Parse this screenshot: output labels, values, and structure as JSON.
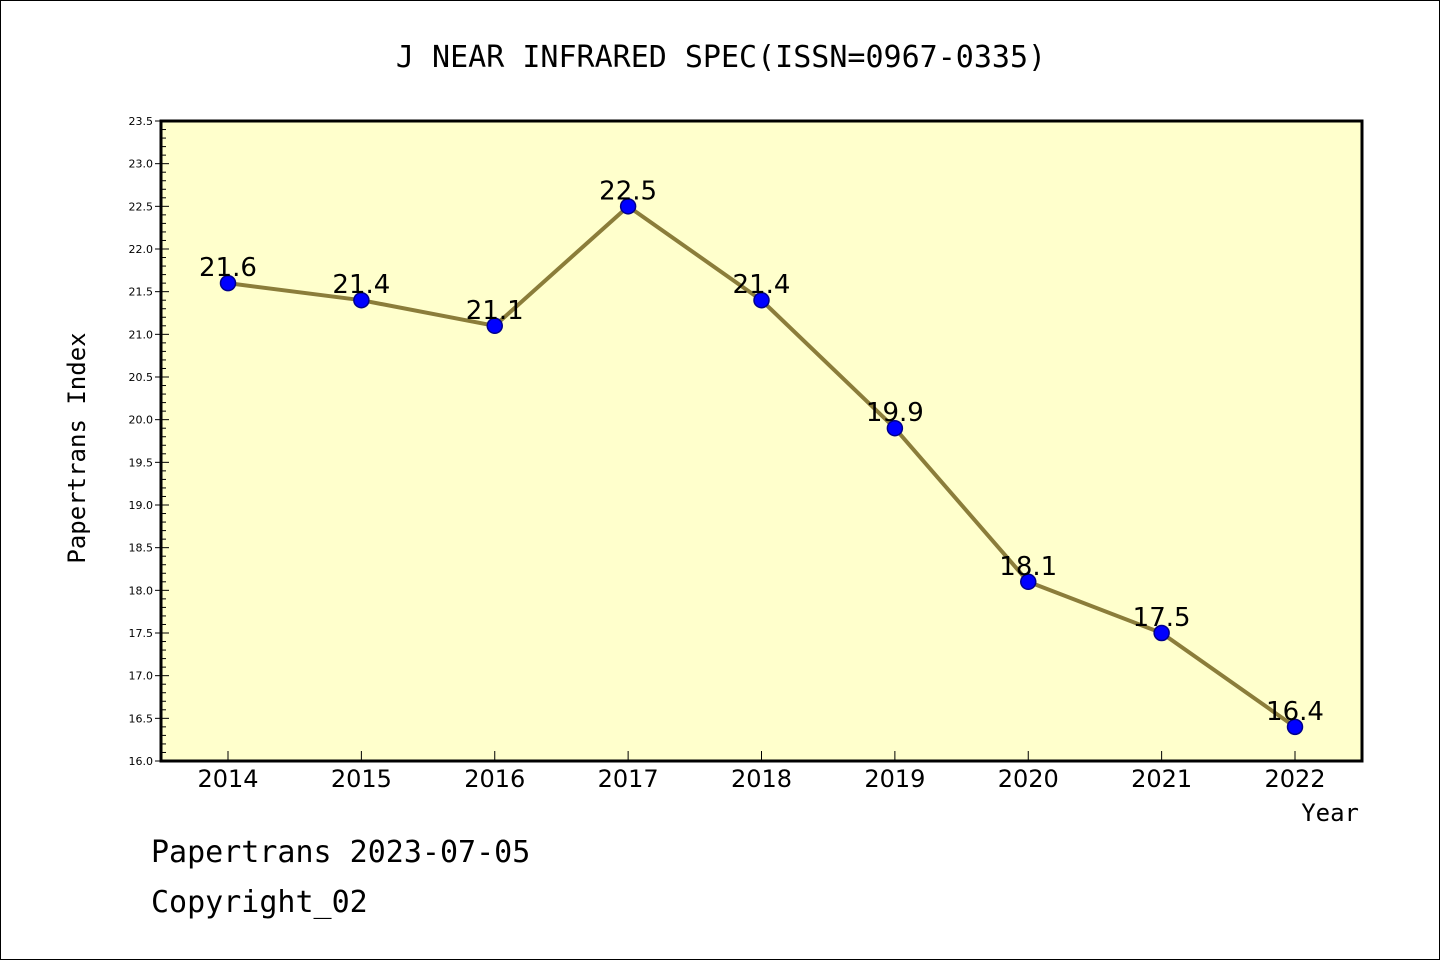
{
  "chart_data": {
    "type": "line",
    "title": "J NEAR INFRARED SPEC(ISSN=0967-0335)",
    "xlabel": "Year",
    "ylabel": "Papertrans Index",
    "categories": [
      "2014",
      "2015",
      "2016",
      "2017",
      "2018",
      "2019",
      "2020",
      "2021",
      "2022"
    ],
    "series": [
      {
        "values": [
          21.6,
          21.4,
          21.1,
          22.5,
          21.4,
          19.9,
          18.1,
          17.5,
          16.4
        ],
        "data_labels": [
          "21.6",
          "21.4",
          "21.1",
          "22.5",
          "21.4",
          "19.9",
          "18.1",
          "17.5",
          "16.4"
        ]
      }
    ],
    "ylim": [
      16.0,
      23.5
    ],
    "yticks": [
      "16.0",
      "16.5",
      "17.0",
      "17.5",
      "18.0",
      "18.5",
      "19.0",
      "19.5",
      "20.0",
      "20.5",
      "21.0",
      "21.5",
      "22.0",
      "22.5",
      "23.0",
      "23.5"
    ],
    "grid": false,
    "colors": {
      "plot_background": "#ffffcc",
      "line": "#8b7d3a",
      "marker_fill": "#0000ff",
      "marker_edge": "#00008b",
      "axis": "#000000"
    }
  },
  "footer": {
    "line1": "Papertrans 2023-07-05",
    "line2": "Copyright_02"
  }
}
